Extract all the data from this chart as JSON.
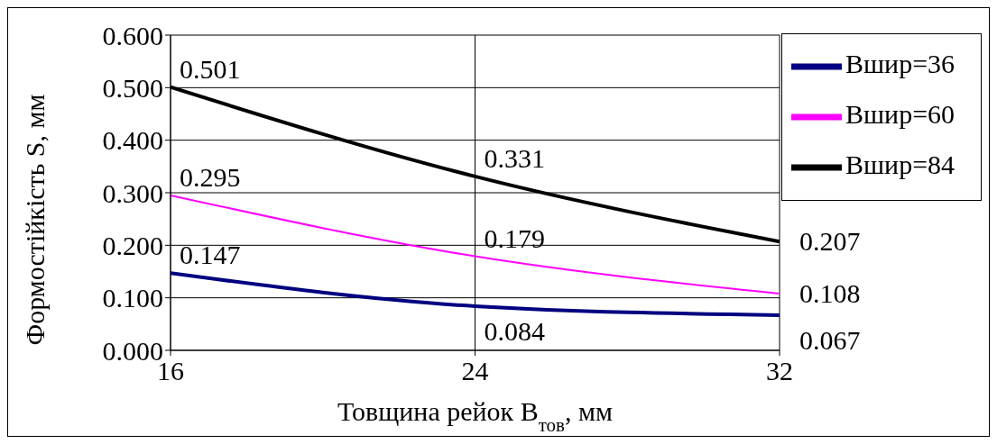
{
  "chart_data": {
    "type": "line",
    "xlabel": "Товщина рейок В$_{тов}$, мм",
    "ylabel": "Формостійкість S, мм",
    "x": [
      16,
      24,
      32
    ],
    "series": [
      {
        "name": "Вшир=36",
        "color": "#000080",
        "values": [
          0.147,
          0.084,
          0.067
        ]
      },
      {
        "name": "Вшир=60",
        "color": "#ff00ff",
        "values": [
          0.295,
          0.179,
          0.108
        ]
      },
      {
        "name": "Вшир=84",
        "color": "#000000",
        "values": [
          0.501,
          0.331,
          0.207
        ]
      }
    ],
    "xlim": [
      16,
      32
    ],
    "xticks": [
      16,
      24,
      32
    ],
    "ylim": [
      0,
      0.6
    ],
    "yticks": [
      {
        "value": 0,
        "label": "0.000"
      },
      {
        "value": 0.1,
        "label": "0.100"
      },
      {
        "value": 0.2,
        "label": "0.200"
      },
      {
        "value": 0.3,
        "label": "0.300"
      },
      {
        "value": 0.4,
        "label": "0.400"
      },
      {
        "value": 0.5,
        "label": "0.500"
      },
      {
        "value": 0.6,
        "label": "0.600"
      }
    ],
    "grid": true,
    "legend": "top right",
    "data_labels": true,
    "marker": "none",
    "line_style": "solid"
  }
}
